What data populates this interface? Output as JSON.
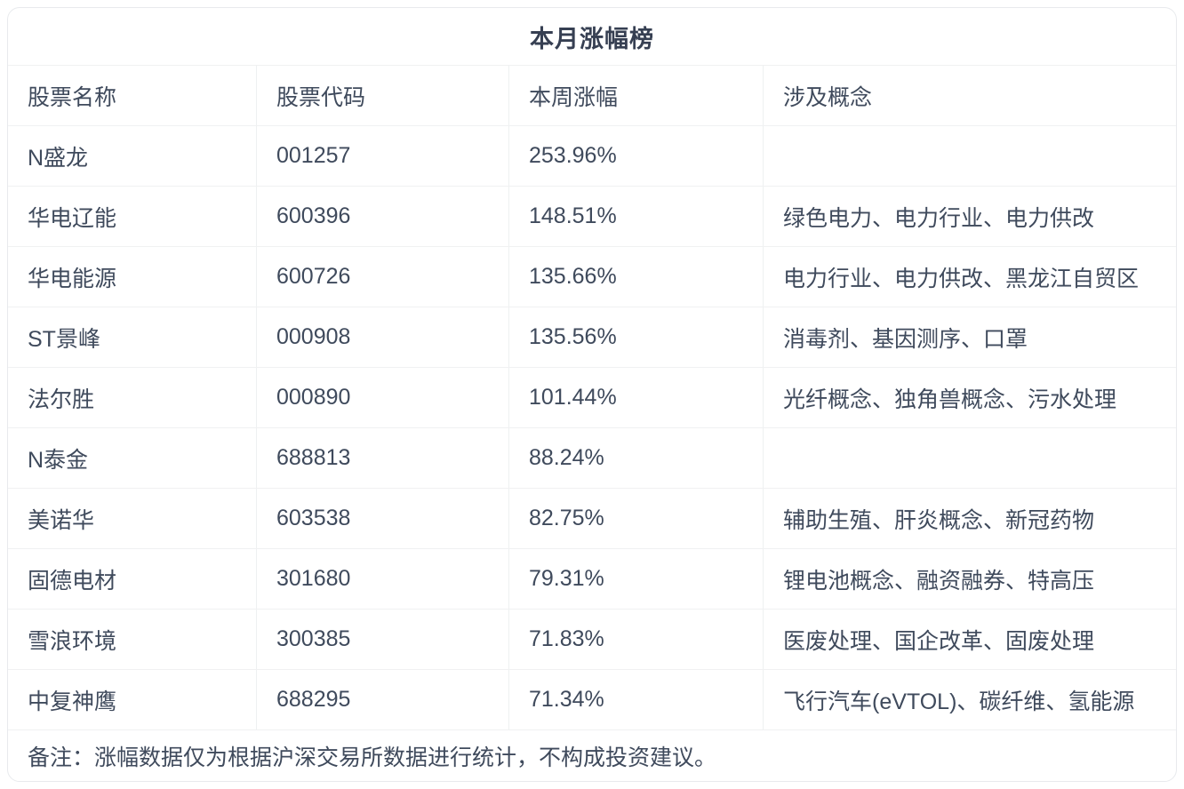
{
  "card": {
    "title": "本月涨幅榜",
    "note": "备注：涨幅数据仅为根据沪深交易所数据进行统计，不构成投资建议。"
  },
  "table": {
    "columns": [
      "股票名称",
      "股票代码",
      "本周涨幅",
      "涉及概念"
    ],
    "rows": [
      {
        "name": "N盛龙",
        "code": "001257",
        "gain": "253.96%",
        "concepts": ""
      },
      {
        "name": "华电辽能",
        "code": "600396",
        "gain": "148.51%",
        "concepts": "绿色电力、电力行业、电力供改"
      },
      {
        "name": "华电能源",
        "code": "600726",
        "gain": "135.66%",
        "concepts": "电力行业、电力供改、黑龙江自贸区"
      },
      {
        "name": "ST景峰",
        "code": "000908",
        "gain": "135.56%",
        "concepts": "消毒剂、基因测序、口罩"
      },
      {
        "name": "法尔胜",
        "code": "000890",
        "gain": "101.44%",
        "concepts": "光纤概念、独角兽概念、污水处理"
      },
      {
        "name": "N泰金",
        "code": "688813",
        "gain": "88.24%",
        "concepts": ""
      },
      {
        "name": "美诺华",
        "code": "603538",
        "gain": "82.75%",
        "concepts": "辅助生殖、肝炎概念、新冠药物"
      },
      {
        "name": "固德电材",
        "code": "301680",
        "gain": "79.31%",
        "concepts": "锂电池概念、融资融券、特高压"
      },
      {
        "name": "雪浪环境",
        "code": "300385",
        "gain": "71.83%",
        "concepts": "医废处理、国企改革、固废处理"
      },
      {
        "name": "中复神鹰",
        "code": "688295",
        "gain": "71.34%",
        "concepts": "飞行汽车(eVTOL)、碳纤维、氢能源"
      }
    ]
  },
  "colors": {
    "text": "#3f4a5c",
    "title_text": "#363f52",
    "card_border": "#e8eaed",
    "row_divider": "#f0f1f2",
    "column_divider": "#eef0f1",
    "background": "#ffffff"
  },
  "chart_data": {
    "type": "table",
    "title": "本月涨幅榜",
    "columns": [
      "股票名称",
      "股票代码",
      "本周涨幅",
      "涉及概念"
    ],
    "rows": [
      [
        "N盛龙",
        "001257",
        "253.96%",
        ""
      ],
      [
        "华电辽能",
        "600396",
        "148.51%",
        "绿色电力、电力行业、电力供改"
      ],
      [
        "华电能源",
        "600726",
        "135.66%",
        "电力行业、电力供改、黑龙江自贸区"
      ],
      [
        "ST景峰",
        "000908",
        "135.56%",
        "消毒剂、基因测序、口罩"
      ],
      [
        "法尔胜",
        "000890",
        "101.44%",
        "光纤概念、独角兽概念、污水处理"
      ],
      [
        "N泰金",
        "688813",
        "88.24%",
        ""
      ],
      [
        "美诺华",
        "603538",
        "82.75%",
        "辅助生殖、肝炎概念、新冠药物"
      ],
      [
        "固德电材",
        "301680",
        "79.31%",
        "锂电池概念、融资融券、特高压"
      ],
      [
        "雪浪环境",
        "300385",
        "71.83%",
        "医废处理、国企改革、固废处理"
      ],
      [
        "中复神鹰",
        "688295",
        "71.34%",
        "飞行汽车(eVTOL)、碳纤维、氢能源"
      ]
    ],
    "gain_values_percent": [
      253.96,
      148.51,
      135.66,
      135.56,
      101.44,
      88.24,
      82.75,
      79.31,
      71.83,
      71.34
    ],
    "footnote": "备注：涨幅数据仅为根据沪深交易所数据进行统计，不构成投资建议。"
  }
}
